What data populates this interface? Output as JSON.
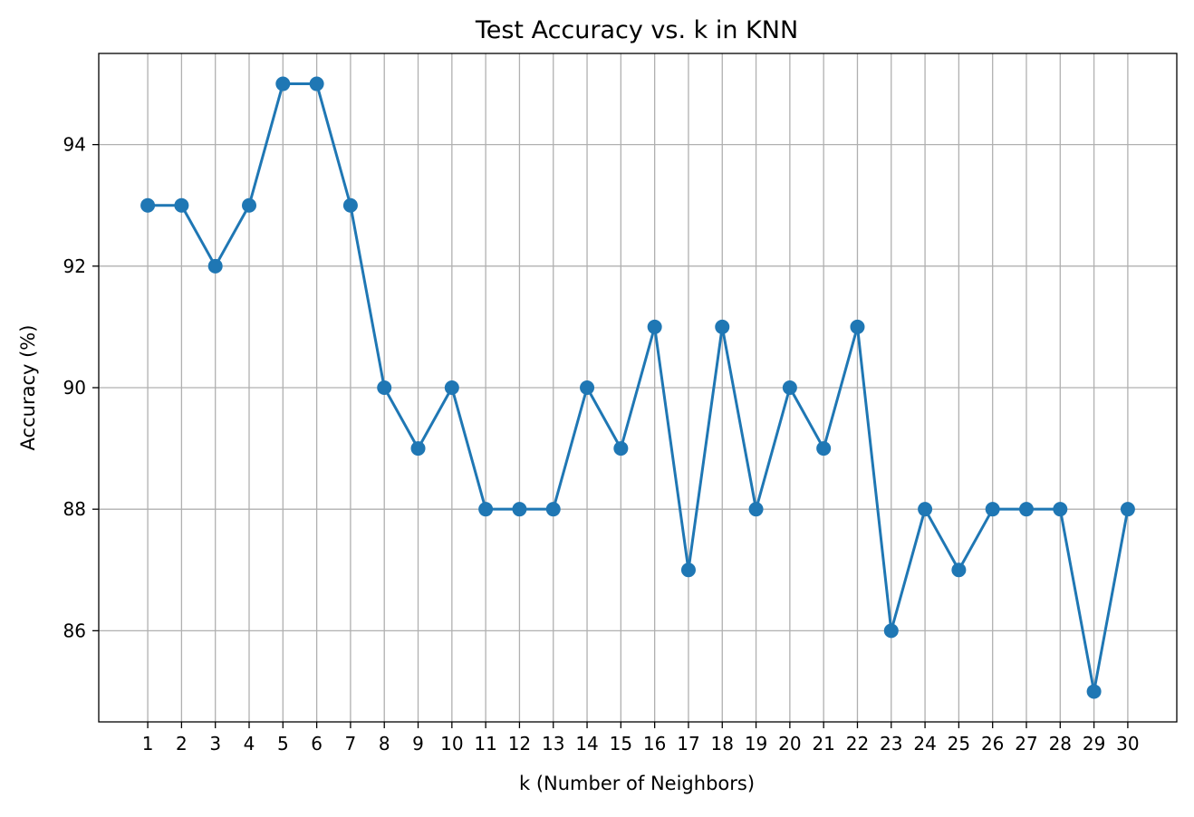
{
  "chart_data": {
    "type": "line",
    "title": "Test Accuracy vs. k in KNN",
    "xlabel": "k (Number of Neighbors)",
    "ylabel": "Accuracy (%)",
    "x": [
      1,
      2,
      3,
      4,
      5,
      6,
      7,
      8,
      9,
      10,
      11,
      12,
      13,
      14,
      15,
      16,
      17,
      18,
      19,
      20,
      21,
      22,
      23,
      24,
      25,
      26,
      27,
      28,
      29,
      30
    ],
    "series": [
      {
        "values": [
          93,
          93,
          92,
          93,
          95,
          95,
          93,
          90,
          89,
          90,
          88,
          88,
          88,
          90,
          89,
          91,
          87,
          91,
          88,
          90,
          89,
          91,
          86,
          88,
          87,
          88,
          88,
          88,
          85,
          88
        ],
        "color": "#1f77b4",
        "marker": "circle"
      }
    ],
    "xticks": [
      "1",
      "2",
      "3",
      "4",
      "5",
      "6",
      "7",
      "8",
      "9",
      "10",
      "11",
      "12",
      "13",
      "14",
      "15",
      "16",
      "17",
      "18",
      "19",
      "20",
      "21",
      "22",
      "23",
      "24",
      "25",
      "26",
      "27",
      "28",
      "29",
      "30"
    ],
    "yticks": [
      "86",
      "88",
      "90",
      "92",
      "94"
    ],
    "ylim": [
      84.5,
      95.5
    ],
    "xlim": [
      -0.45,
      31.45
    ],
    "grid": true,
    "colors": {
      "line": "#1f77b4",
      "grid": "#b0b0b0",
      "axes": "#000000"
    }
  }
}
